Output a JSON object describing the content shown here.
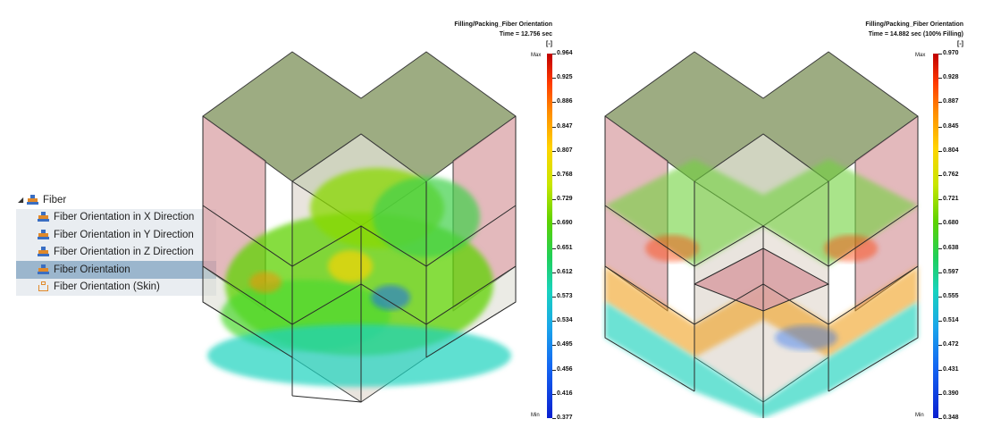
{
  "tree": {
    "root_label": "Fiber",
    "root_icon": "fiber-stack-icon",
    "items": [
      {
        "label": "Fiber Orientation in X Direction",
        "icon": "fiber-stack-icon"
      },
      {
        "label": "Fiber Orientation in Y Direction",
        "icon": "fiber-stack-icon"
      },
      {
        "label": "Fiber Orientation in Z Direction",
        "icon": "fiber-stack-icon"
      },
      {
        "label": "Fiber Orientation",
        "icon": "fiber-stack-icon",
        "selected": true
      },
      {
        "label": "Fiber Orientation (Skin)",
        "icon": "fiber-skin-icon"
      }
    ]
  },
  "left_plot": {
    "title": "Filling/Packing_Fiber Orientation",
    "time": "Time = 12.756 sec",
    "unit": "[-]",
    "max_label": "Max",
    "min_label": "Min",
    "ticks": [
      "0.964",
      "0.925",
      "0.886",
      "0.847",
      "0.807",
      "0.768",
      "0.729",
      "0.690",
      "0.651",
      "0.612",
      "0.573",
      "0.534",
      "0.495",
      "0.456",
      "0.416",
      "0.377"
    ]
  },
  "right_plot": {
    "title": "Filling/Packing_Fiber Orientation",
    "time": "Time = 14.882 sec (100% Filling)",
    "unit": "[-]",
    "max_label": "Max",
    "min_label": "Min",
    "ticks": [
      "0.970",
      "0.928",
      "0.887",
      "0.845",
      "0.804",
      "0.762",
      "0.721",
      "0.680",
      "0.638",
      "0.597",
      "0.555",
      "0.514",
      "0.472",
      "0.431",
      "0.390",
      "0.348"
    ]
  },
  "colors": {
    "selected_row": "#9bb6cd",
    "top_face": "#8c9e6c",
    "side_face": "#d9a2a6",
    "fiber_green": "#5ed200",
    "fiber_cyan": "#18d3bd",
    "fiber_red": "#ff3a00"
  }
}
